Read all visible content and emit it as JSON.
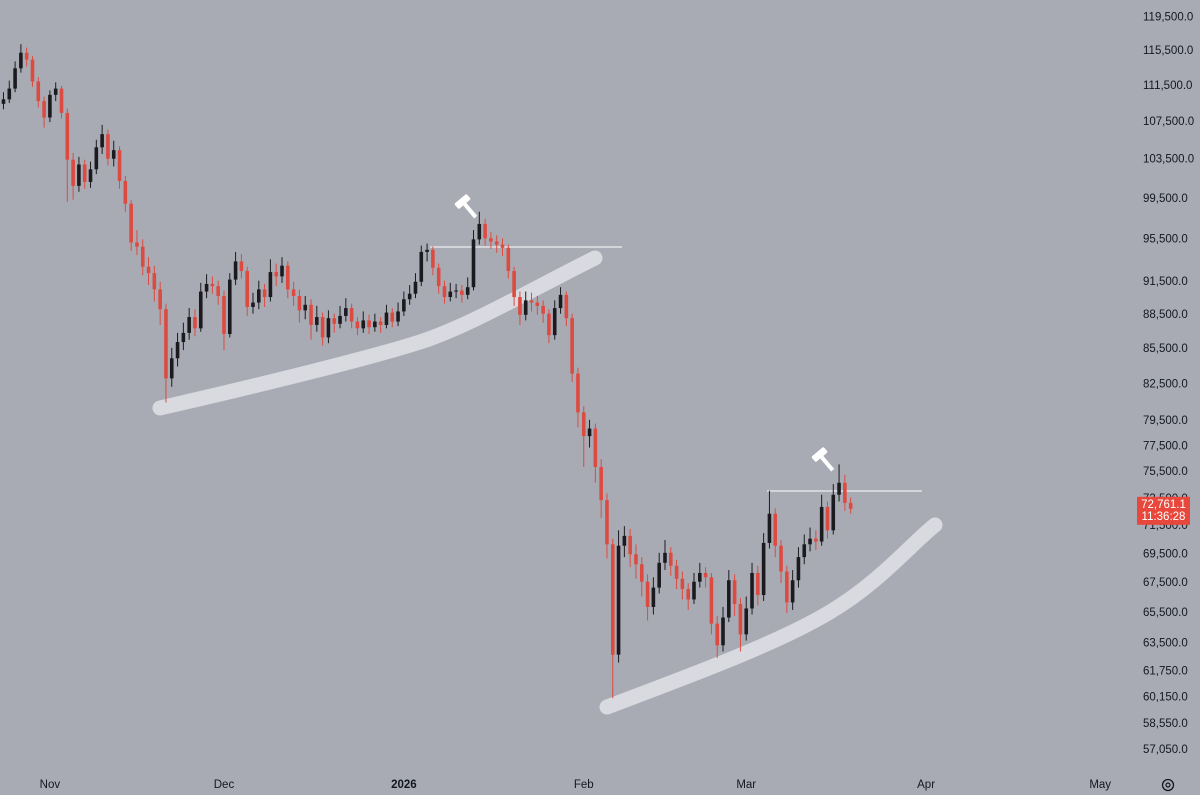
{
  "chart_data": {
    "type": "candlestick",
    "log_scale": true,
    "up_color": "#1b1b1f",
    "down_color": "#dd4a40",
    "last_price_color": "#e8473b",
    "last_price_label": "72,761.1",
    "countdown": "11:36:28",
    "xlim": [
      -8.6,
      187
    ],
    "ylim": [
      55900,
      121600
    ],
    "xticks": [
      {
        "value": 0,
        "label": "Nov"
      },
      {
        "value": 30,
        "label": "Dec"
      },
      {
        "value": 61,
        "label": "2026"
      },
      {
        "value": 92,
        "label": "Feb"
      },
      {
        "value": 120,
        "label": "Mar"
      },
      {
        "value": 151,
        "label": "Apr"
      },
      {
        "value": 181,
        "label": "May"
      }
    ],
    "yticks": [
      {
        "value": 119500,
        "label": "119,500.0"
      },
      {
        "value": 115500,
        "label": "115,500.0"
      },
      {
        "value": 111500,
        "label": "111,500.0"
      },
      {
        "value": 107500,
        "label": "107,500.0"
      },
      {
        "value": 103500,
        "label": "103,500.0"
      },
      {
        "value": 99500,
        "label": "99,500.0"
      },
      {
        "value": 95500,
        "label": "95,500.0"
      },
      {
        "value": 91500,
        "label": "91,500.0"
      },
      {
        "value": 88500,
        "label": "88,500.0"
      },
      {
        "value": 85500,
        "label": "85,500.0"
      },
      {
        "value": 82500,
        "label": "82,500.0"
      },
      {
        "value": 79500,
        "label": "79,500.0"
      },
      {
        "value": 77500,
        "label": "77,500.0"
      },
      {
        "value": 75500,
        "label": "75,500.0"
      },
      {
        "value": 73500,
        "label": "73,500.0"
      },
      {
        "value": 71500,
        "label": "71,500.0"
      },
      {
        "value": 69500,
        "label": "69,500.0"
      },
      {
        "value": 67500,
        "label": "67,500.0"
      },
      {
        "value": 65500,
        "label": "65,500.0"
      },
      {
        "value": 63500,
        "label": "63,500.0"
      },
      {
        "value": 61750,
        "label": "61,750.0"
      },
      {
        "value": 60150,
        "label": "60,150.0"
      },
      {
        "value": 58550,
        "label": "58,550.0"
      },
      {
        "value": 57050,
        "label": "57,050.0"
      }
    ],
    "x": [
      -8,
      -7,
      -6,
      -5,
      -4,
      -3,
      -2,
      -1,
      0,
      1,
      2,
      3,
      4,
      5,
      6,
      7,
      8,
      9,
      10,
      11,
      12,
      13,
      14,
      15,
      16,
      17,
      18,
      19,
      20,
      21,
      22,
      23,
      24,
      25,
      26,
      27,
      28,
      29,
      30,
      31,
      32,
      33,
      34,
      35,
      36,
      37,
      38,
      39,
      40,
      41,
      42,
      43,
      44,
      45,
      46,
      47,
      48,
      49,
      50,
      51,
      52,
      53,
      54,
      55,
      56,
      57,
      58,
      59,
      60,
      61,
      62,
      63,
      64,
      65,
      66,
      67,
      68,
      69,
      70,
      71,
      72,
      73,
      74,
      75,
      76,
      77,
      78,
      79,
      80,
      81,
      82,
      83,
      84,
      85,
      86,
      87,
      88,
      89,
      90,
      91,
      92,
      93,
      94,
      95,
      96,
      97,
      98,
      99,
      100,
      101,
      102,
      103,
      104,
      105,
      106,
      107,
      108,
      109,
      110,
      111,
      112,
      113,
      114,
      115,
      116,
      117,
      118,
      119,
      120,
      121,
      122,
      123,
      124,
      125,
      126,
      127,
      128,
      129,
      130,
      131,
      132,
      133,
      134,
      135,
      136,
      137,
      138
    ],
    "candles": [
      [
        109500,
        110800,
        108900,
        110000
      ],
      [
        110000,
        112100,
        109600,
        111200
      ],
      [
        111200,
        114300,
        110800,
        113500
      ],
      [
        113500,
        116300,
        113000,
        115300
      ],
      [
        115300,
        115900,
        113700,
        114500
      ],
      [
        114500,
        114900,
        111400,
        112000
      ],
      [
        112000,
        112500,
        109100,
        109800
      ],
      [
        109800,
        110300,
        106900,
        108000
      ],
      [
        108000,
        111000,
        107500,
        110500
      ],
      [
        110500,
        111900,
        109800,
        111200
      ],
      [
        111200,
        111500,
        107900,
        108500
      ],
      [
        108500,
        109000,
        99200,
        103500
      ],
      [
        103500,
        104200,
        99400,
        100800
      ],
      [
        100800,
        103800,
        100200,
        103000
      ],
      [
        103000,
        103500,
        100500,
        101200
      ],
      [
        101200,
        103300,
        100600,
        102500
      ],
      [
        102500,
        105600,
        102000,
        104800
      ],
      [
        104800,
        107200,
        104100,
        106200
      ],
      [
        106200,
        106700,
        102900,
        103600
      ],
      [
        103600,
        105500,
        102800,
        104500
      ],
      [
        104500,
        104900,
        100500,
        101300
      ],
      [
        101300,
        101800,
        98200,
        99000
      ],
      [
        99000,
        99400,
        94400,
        95200
      ],
      [
        95200,
        96400,
        94000,
        94800
      ],
      [
        94800,
        95500,
        92100,
        92900
      ],
      [
        92900,
        93800,
        91200,
        92300
      ],
      [
        92300,
        93000,
        89700,
        90800
      ],
      [
        90800,
        91500,
        87600,
        89000
      ],
      [
        89000,
        89500,
        81000,
        83000
      ],
      [
        83000,
        85600,
        82300,
        84700
      ],
      [
        84700,
        86900,
        84000,
        86100
      ],
      [
        86100,
        87800,
        85400,
        86900
      ],
      [
        86900,
        89100,
        86300,
        88300
      ],
      [
        88300,
        89000,
        86600,
        87300
      ],
      [
        87300,
        91400,
        87000,
        90600
      ],
      [
        90600,
        92200,
        90000,
        91300
      ],
      [
        91300,
        92000,
        90400,
        91100
      ],
      [
        91100,
        91600,
        89400,
        90200
      ],
      [
        90200,
        90700,
        85400,
        86800
      ],
      [
        86800,
        92300,
        86500,
        91700
      ],
      [
        91700,
        94300,
        91200,
        93400
      ],
      [
        93400,
        94100,
        91800,
        92500
      ],
      [
        92500,
        92900,
        88400,
        89200
      ],
      [
        89200,
        90500,
        88600,
        89600
      ],
      [
        89600,
        91600,
        89000,
        90800
      ],
      [
        90800,
        91300,
        89200,
        90100
      ],
      [
        90100,
        93600,
        89700,
        92400
      ],
      [
        92400,
        93200,
        91100,
        92000
      ],
      [
        92000,
        93800,
        91400,
        93000
      ],
      [
        93000,
        93400,
        90000,
        90800
      ],
      [
        90800,
        91500,
        89300,
        90200
      ],
      [
        90200,
        90800,
        87800,
        88900
      ],
      [
        88900,
        90200,
        88100,
        89400
      ],
      [
        89400,
        89900,
        86300,
        87600
      ],
      [
        87600,
        89300,
        87000,
        88300
      ],
      [
        88300,
        88700,
        85800,
        86500
      ],
      [
        86500,
        88900,
        86000,
        88200
      ],
      [
        88200,
        88600,
        86900,
        87700
      ],
      [
        87700,
        89300,
        87300,
        88400
      ],
      [
        88400,
        90000,
        87900,
        89100
      ],
      [
        89100,
        89500,
        87300,
        87900
      ],
      [
        87900,
        88300,
        86700,
        87300
      ],
      [
        87300,
        88800,
        86900,
        88000
      ],
      [
        88000,
        88500,
        86800,
        87400
      ],
      [
        87400,
        88600,
        87000,
        87900
      ],
      [
        87900,
        88300,
        86900,
        87600
      ],
      [
        87600,
        89400,
        87300,
        88700
      ],
      [
        88700,
        89100,
        87400,
        87900
      ],
      [
        87900,
        89600,
        87500,
        88800
      ],
      [
        88800,
        90600,
        88400,
        89900
      ],
      [
        89900,
        91200,
        89400,
        90400
      ],
      [
        90400,
        92300,
        90000,
        91500
      ],
      [
        91500,
        94900,
        91100,
        94300
      ],
      [
        94300,
        95100,
        93400,
        94500
      ],
      [
        94500,
        94800,
        92100,
        92800
      ],
      [
        92800,
        93200,
        90400,
        91100
      ],
      [
        91100,
        91600,
        89500,
        90100
      ],
      [
        90100,
        91400,
        89700,
        90600
      ],
      [
        90600,
        91300,
        90000,
        90700
      ],
      [
        90700,
        91200,
        89600,
        90300
      ],
      [
        90300,
        91900,
        89900,
        91000
      ],
      [
        91000,
        96400,
        90700,
        95500
      ],
      [
        95500,
        98200,
        95000,
        97000
      ],
      [
        97000,
        97500,
        94900,
        95600
      ],
      [
        95600,
        96200,
        94600,
        95300
      ],
      [
        95300,
        95900,
        94200,
        95000
      ],
      [
        95000,
        95600,
        93900,
        94700
      ],
      [
        94700,
        95000,
        91800,
        92500
      ],
      [
        92500,
        92900,
        89300,
        90100
      ],
      [
        90100,
        90600,
        87600,
        88500
      ],
      [
        88500,
        90600,
        88000,
        89800
      ],
      [
        89800,
        90500,
        88800,
        89600
      ],
      [
        89600,
        90200,
        88500,
        89300
      ],
      [
        89300,
        89800,
        87800,
        88600
      ],
      [
        88600,
        89000,
        86000,
        86700
      ],
      [
        86700,
        89800,
        86300,
        89100
      ],
      [
        89100,
        91000,
        88600,
        90300
      ],
      [
        90300,
        90600,
        87500,
        88200
      ],
      [
        88200,
        88600,
        82700,
        83400
      ],
      [
        83400,
        83900,
        79000,
        80200
      ],
      [
        80200,
        80700,
        75900,
        78300
      ],
      [
        78300,
        79600,
        77400,
        78900
      ],
      [
        78900,
        79300,
        74700,
        75900
      ],
      [
        75900,
        76500,
        72100,
        73400
      ],
      [
        73400,
        73900,
        69200,
        70200
      ],
      [
        70200,
        70600,
        60100,
        62800
      ],
      [
        62800,
        71200,
        62300,
        70100
      ],
      [
        70100,
        71500,
        69300,
        70800
      ],
      [
        70800,
        71300,
        68600,
        69500
      ],
      [
        69500,
        70200,
        67800,
        68800
      ],
      [
        68800,
        69300,
        66600,
        67600
      ],
      [
        67600,
        68100,
        65000,
        65900
      ],
      [
        65900,
        67900,
        65400,
        67200
      ],
      [
        67200,
        69600,
        66800,
        68900
      ],
      [
        68900,
        70500,
        68400,
        69600
      ],
      [
        69600,
        70000,
        68000,
        68700
      ],
      [
        68700,
        69100,
        67100,
        67800
      ],
      [
        67800,
        68300,
        66400,
        67100
      ],
      [
        67100,
        67500,
        65700,
        66400
      ],
      [
        66400,
        68200,
        66100,
        67600
      ],
      [
        67600,
        68900,
        67200,
        68200
      ],
      [
        68200,
        68600,
        67200,
        67900
      ],
      [
        67900,
        68200,
        64100,
        64800
      ],
      [
        64800,
        65300,
        62600,
        63400
      ],
      [
        63400,
        65900,
        63000,
        65200
      ],
      [
        65200,
        68400,
        64900,
        67700
      ],
      [
        67700,
        68100,
        65300,
        66100
      ],
      [
        66100,
        66500,
        63000,
        64100
      ],
      [
        64100,
        66600,
        63700,
        65800
      ],
      [
        65800,
        68900,
        65400,
        68200
      ],
      [
        68200,
        68700,
        66000,
        66700
      ],
      [
        66700,
        71000,
        66300,
        70300
      ],
      [
        70300,
        74100,
        69900,
        72400
      ],
      [
        72400,
        72800,
        69300,
        70100
      ],
      [
        70100,
        70500,
        67500,
        68300
      ],
      [
        68300,
        68700,
        65500,
        66200
      ],
      [
        66200,
        68400,
        65700,
        67700
      ],
      [
        67700,
        70000,
        67200,
        69300
      ],
      [
        69300,
        70900,
        68800,
        70200
      ],
      [
        70200,
        71400,
        69700,
        70600
      ],
      [
        70600,
        71200,
        69800,
        70400
      ],
      [
        70400,
        73800,
        70100,
        72900
      ],
      [
        72900,
        73300,
        70600,
        71200
      ],
      [
        71200,
        74600,
        70900,
        73800
      ],
      [
        73800,
        76100,
        73300,
        74700
      ],
      [
        74700,
        75300,
        72600,
        73200
      ],
      [
        73200,
        73600,
        72400,
        72761.1
      ]
    ]
  }
}
